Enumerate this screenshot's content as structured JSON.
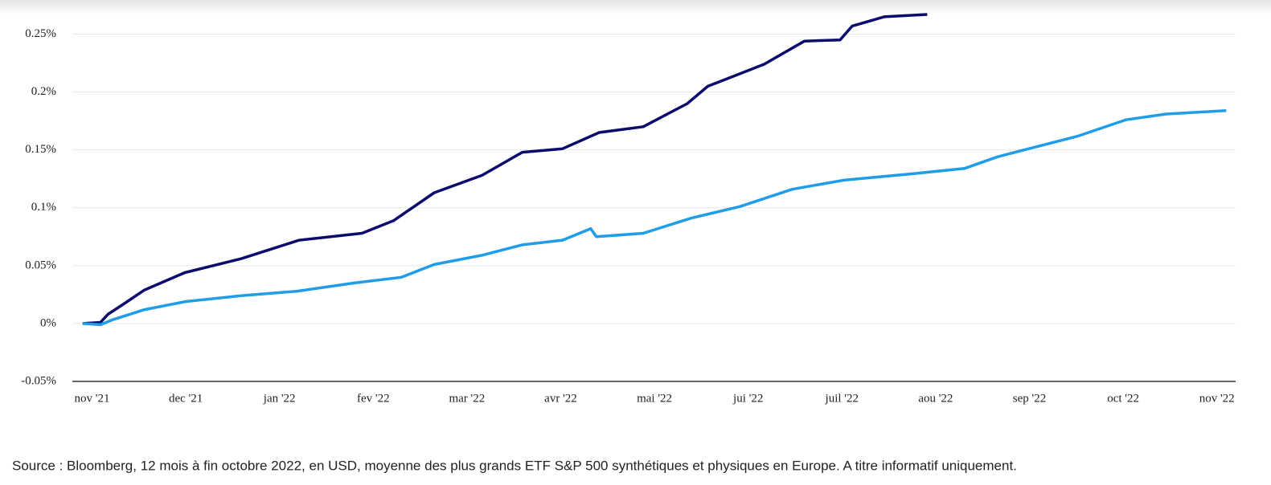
{
  "chart_data": {
    "type": "line",
    "source": "Source : Bloomberg, 12 mois à fin octobre 2022, en USD, moyenne des plus grands ETF S&P 500 synthétiques et physiques en Europe. A titre informatif uniquement.",
    "series": [
      {
        "color": "#0c0c6e",
        "x": [
          -0.1,
          0.09,
          0.17,
          0.34,
          0.56,
          0.99,
          1.59,
          2.21,
          2.88,
          3.22,
          3.65,
          4.16,
          4.59,
          5.02,
          5.41,
          5.88,
          6.35,
          6.57,
          7.17,
          7.6,
          7.98,
          8.11,
          8.45,
          8.91
        ],
        "values": [
          0,
          0.001,
          0.008,
          0.017,
          0.029,
          0.044,
          0.056,
          0.072,
          0.078,
          0.089,
          0.113,
          0.128,
          0.148,
          0.151,
          0.165,
          0.17,
          0.19,
          0.205,
          0.224,
          0.244,
          0.245,
          0.257,
          0.265,
          0.267
        ]
      },
      {
        "color": "#1f9de9",
        "x": [
          -0.1,
          0.09,
          0.21,
          0.56,
          1.0,
          1.59,
          2.19,
          2.79,
          3.3,
          3.65,
          4.16,
          4.59,
          5.02,
          5.32,
          5.38,
          5.88,
          6.39,
          6.91,
          7.47,
          8.03,
          8.71,
          9.31,
          9.66,
          10.09,
          10.52,
          11.03,
          11.46,
          12.1
        ],
        "values": [
          0,
          -0.001,
          0.003,
          0.012,
          0.019,
          0.024,
          0.028,
          0.035,
          0.04,
          0.051,
          0.059,
          0.068,
          0.072,
          0.082,
          0.075,
          0.078,
          0.091,
          0.101,
          0.116,
          0.124,
          0.129,
          0.134,
          0.144,
          0.153,
          0.162,
          0.176,
          0.181,
          0.184
        ]
      }
    ],
    "xlim": [
      -0.21,
      12.2
    ],
    "xticks": [
      {
        "value": 0,
        "label": "nov '21"
      },
      {
        "value": 1,
        "label": "dec '21"
      },
      {
        "value": 2,
        "label": "jan '22"
      },
      {
        "value": 3,
        "label": "fev '22"
      },
      {
        "value": 4,
        "label": "mar '22"
      },
      {
        "value": 5,
        "label": "avr '22"
      },
      {
        "value": 6,
        "label": "mai '22"
      },
      {
        "value": 7,
        "label": "jui '22"
      },
      {
        "value": 8,
        "label": "juil '22"
      },
      {
        "value": 9,
        "label": "aou '22"
      },
      {
        "value": 10,
        "label": "sep '22"
      },
      {
        "value": 11,
        "label": "oct '22"
      },
      {
        "value": 12,
        "label": "nov '22"
      }
    ],
    "ylim": [
      -0.05,
      0.267
    ],
    "yticks": [
      {
        "value": -0.05,
        "label": "-0.05%"
      },
      {
        "value": 0,
        "label": "0%"
      },
      {
        "value": 0.05,
        "label": "0.05%"
      },
      {
        "value": 0.1,
        "label": "0.1%"
      },
      {
        "value": 0.15,
        "label": "0.15%"
      },
      {
        "value": 0.2,
        "label": "0.2%"
      },
      {
        "value": 0.25,
        "label": "0.25%"
      }
    ],
    "grid": true
  }
}
